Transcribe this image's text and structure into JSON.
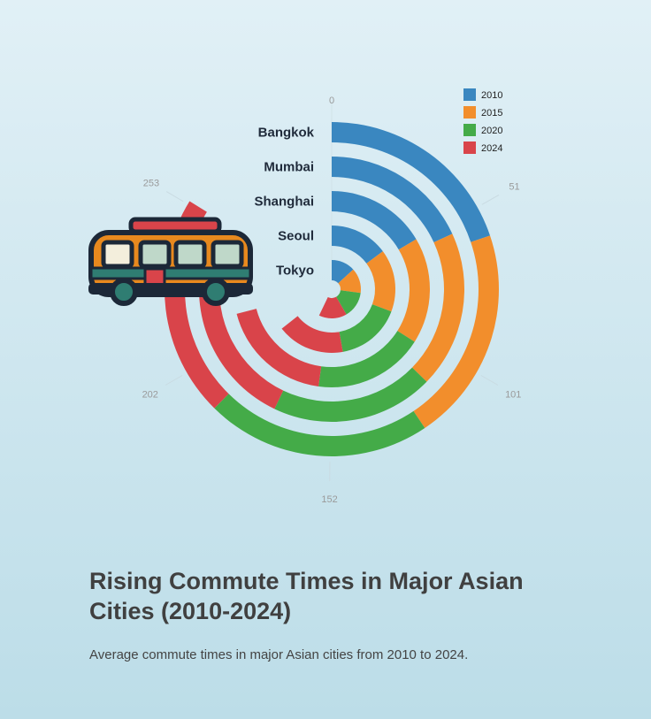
{
  "chart_data": {
    "type": "radial-stacked-bar",
    "title": "Rising Commute Times in Major Asian Cities (2010-2024)",
    "subtitle": "Average commute times in major Asian cities from 2010 to 2024.",
    "categories": [
      "Bangkok",
      "Mumbai",
      "Shanghai",
      "Seoul",
      "Tokyo"
    ],
    "series": [
      {
        "name": "2010",
        "color": "#3a87c0",
        "values": [
          60,
          55,
          50,
          45,
          40
        ]
      },
      {
        "name": "2015",
        "color": "#f28e2c",
        "values": [
          63,
          58,
          53,
          48,
          42
        ]
      },
      {
        "name": "2020",
        "color": "#44ab48",
        "values": [
          66,
          60,
          55,
          50,
          44
        ]
      },
      {
        "name": "2024",
        "color": "#d9444a",
        "values": [
          65,
          62,
          57,
          52,
          47
        ]
      }
    ],
    "axis": {
      "ticks": [
        0,
        51,
        101,
        152,
        202,
        253
      ],
      "max": 303
    },
    "legend_position": "top-right",
    "icon": "bus-icon"
  }
}
